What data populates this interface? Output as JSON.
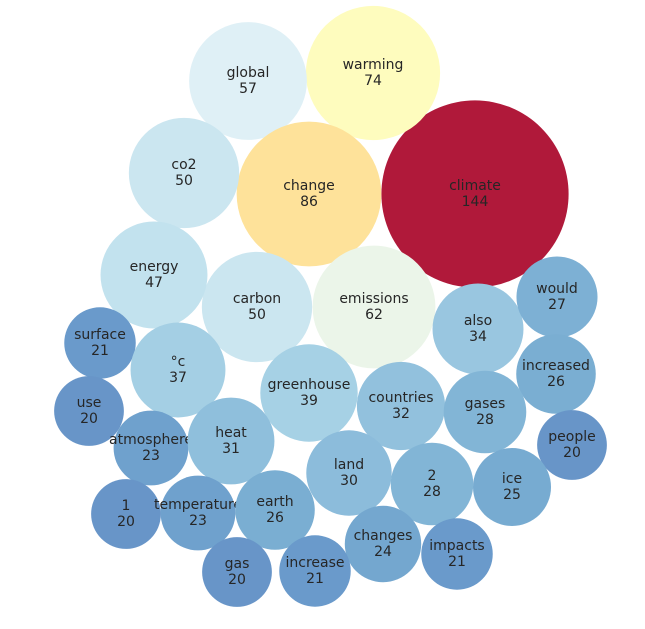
{
  "chart_data": {
    "type": "packed-bubble",
    "labels": [
      "climate",
      "warming",
      "global",
      "change",
      "co2",
      "carbon",
      "emissions",
      "energy",
      "also",
      "would",
      "increased",
      "surface",
      "°c",
      "greenhouse",
      "countries",
      "gases",
      "people",
      "use",
      "atmosphere",
      "heat",
      "land",
      "2",
      "ice",
      "1",
      "temperature",
      "earth",
      "changes",
      "impacts",
      "gas",
      "increase"
    ],
    "values": [
      144,
      74,
      57,
      86,
      50,
      50,
      62,
      47,
      34,
      27,
      26,
      21,
      37,
      39,
      32,
      28,
      20,
      20,
      23,
      31,
      30,
      28,
      25,
      20,
      23,
      26,
      24,
      21,
      20,
      21
    ],
    "colors": [
      "#b0193a",
      "#fefcbe",
      "#dff0f6",
      "#fee29a",
      "#cbe6f0",
      "#cbe6f0",
      "#ebf5e9",
      "#c2e2ee",
      "#99c6e0",
      "#7db0d4",
      "#7aaed2",
      "#6a9acb",
      "#a4cfe4",
      "#a6d1e5",
      "#92c1dd",
      "#82b5d6",
      "#6895c8",
      "#6895c8",
      "#6fa1cd",
      "#8fbfdc",
      "#8cbcdb",
      "#82b5d6",
      "#77abd1",
      "#6895c8",
      "#6fa1cd",
      "#7aaed2",
      "#74a7cf",
      "#6a9acb",
      "#6895c8",
      "#6a9acb"
    ]
  }
}
